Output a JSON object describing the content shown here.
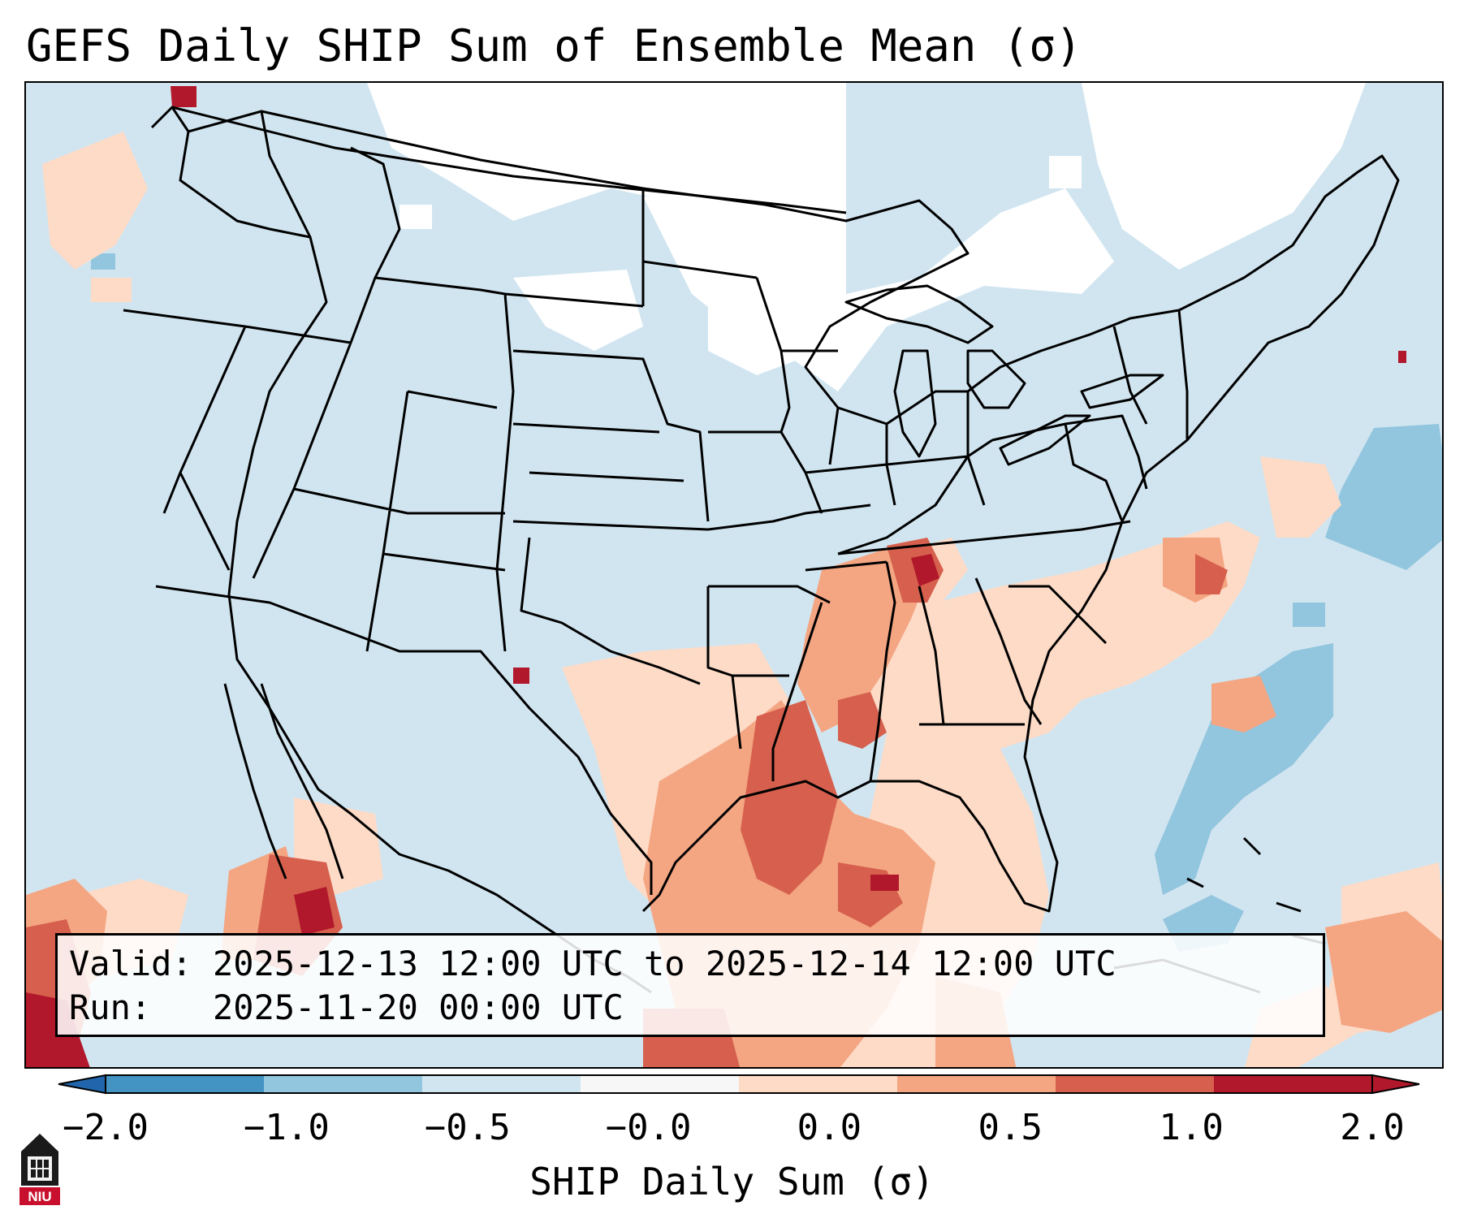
{
  "title": "GEFS Daily SHIP Sum of Ensemble Mean (σ)",
  "info": {
    "valid_label": "Valid:",
    "valid_value": "2025-12-13 12:00 UTC to 2025-12-14 12:00 UTC",
    "run_label": "Run:",
    "run_value": "2025-11-20 00:00 UTC"
  },
  "colorbar": {
    "label": "SHIP Daily Sum (σ)",
    "ticks": [
      "−2.0",
      "−1.0",
      "−0.5",
      "−0.0",
      "0.0",
      "0.5",
      "1.0",
      "2.0"
    ],
    "colors": [
      "#4393c3",
      "#92c5de",
      "#d1e5f0",
      "#f7f7f7",
      "#fddbc7",
      "#f4a582",
      "#d6604d",
      "#b2182b"
    ],
    "extend_low_color": "#2166ac",
    "extend_high_color": "#b2182b"
  },
  "map": {
    "background_color": "#d1e5f0",
    "region": "Contiguous United States"
  },
  "logo": {
    "text": "NIU",
    "color": "#c8102e",
    "icon": "university-tower-icon"
  }
}
